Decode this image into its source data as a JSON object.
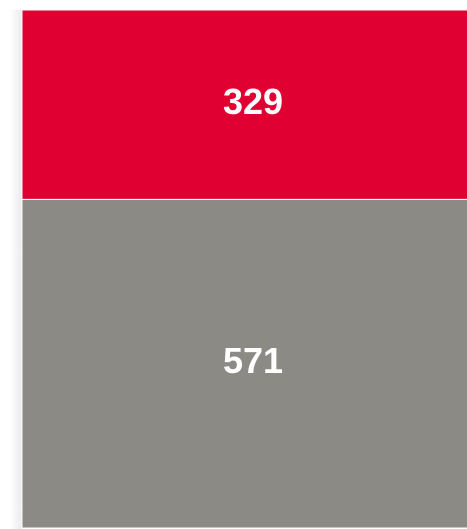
{
  "chart_data": {
    "type": "bar",
    "stacked": true,
    "categories": [
      null
    ],
    "series": [
      {
        "name": null,
        "color": "#8c8a85",
        "values": [
          571
        ]
      },
      {
        "name": null,
        "color": "#e10032",
        "values": [
          329
        ]
      }
    ]
  }
}
